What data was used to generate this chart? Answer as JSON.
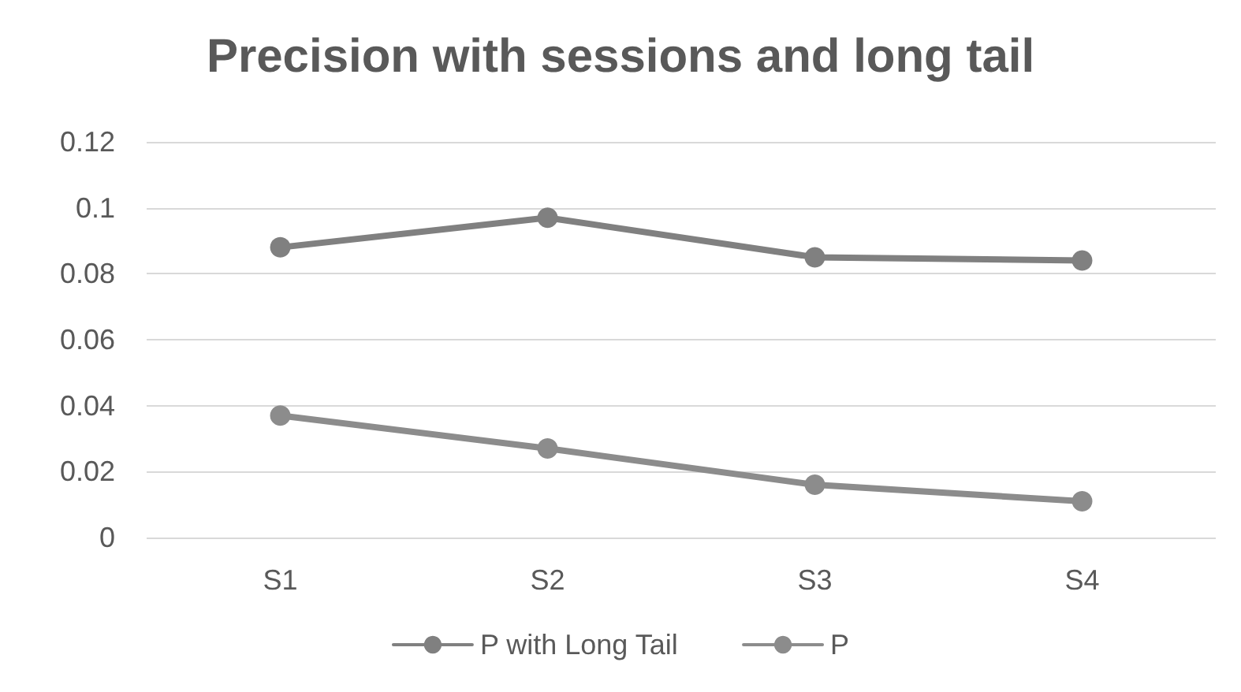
{
  "chart_data": {
    "type": "line",
    "title": "Precision with sessions and long tail",
    "categories": [
      "S1",
      "S2",
      "S3",
      "S4"
    ],
    "series": [
      {
        "name": "P with Long Tail",
        "color": "#808080",
        "values": [
          0.088,
          0.097,
          0.085,
          0.084
        ]
      },
      {
        "name": "P",
        "color": "#8c8c8c",
        "values": [
          0.037,
          0.027,
          0.016,
          0.011
        ]
      }
    ],
    "ylim": [
      0,
      0.12
    ],
    "yticks": [
      0,
      0.02,
      0.04,
      0.06,
      0.08,
      0.1,
      0.12
    ],
    "grid": "y",
    "legend": "bottom",
    "marker": "circle",
    "line_style": "solid"
  }
}
